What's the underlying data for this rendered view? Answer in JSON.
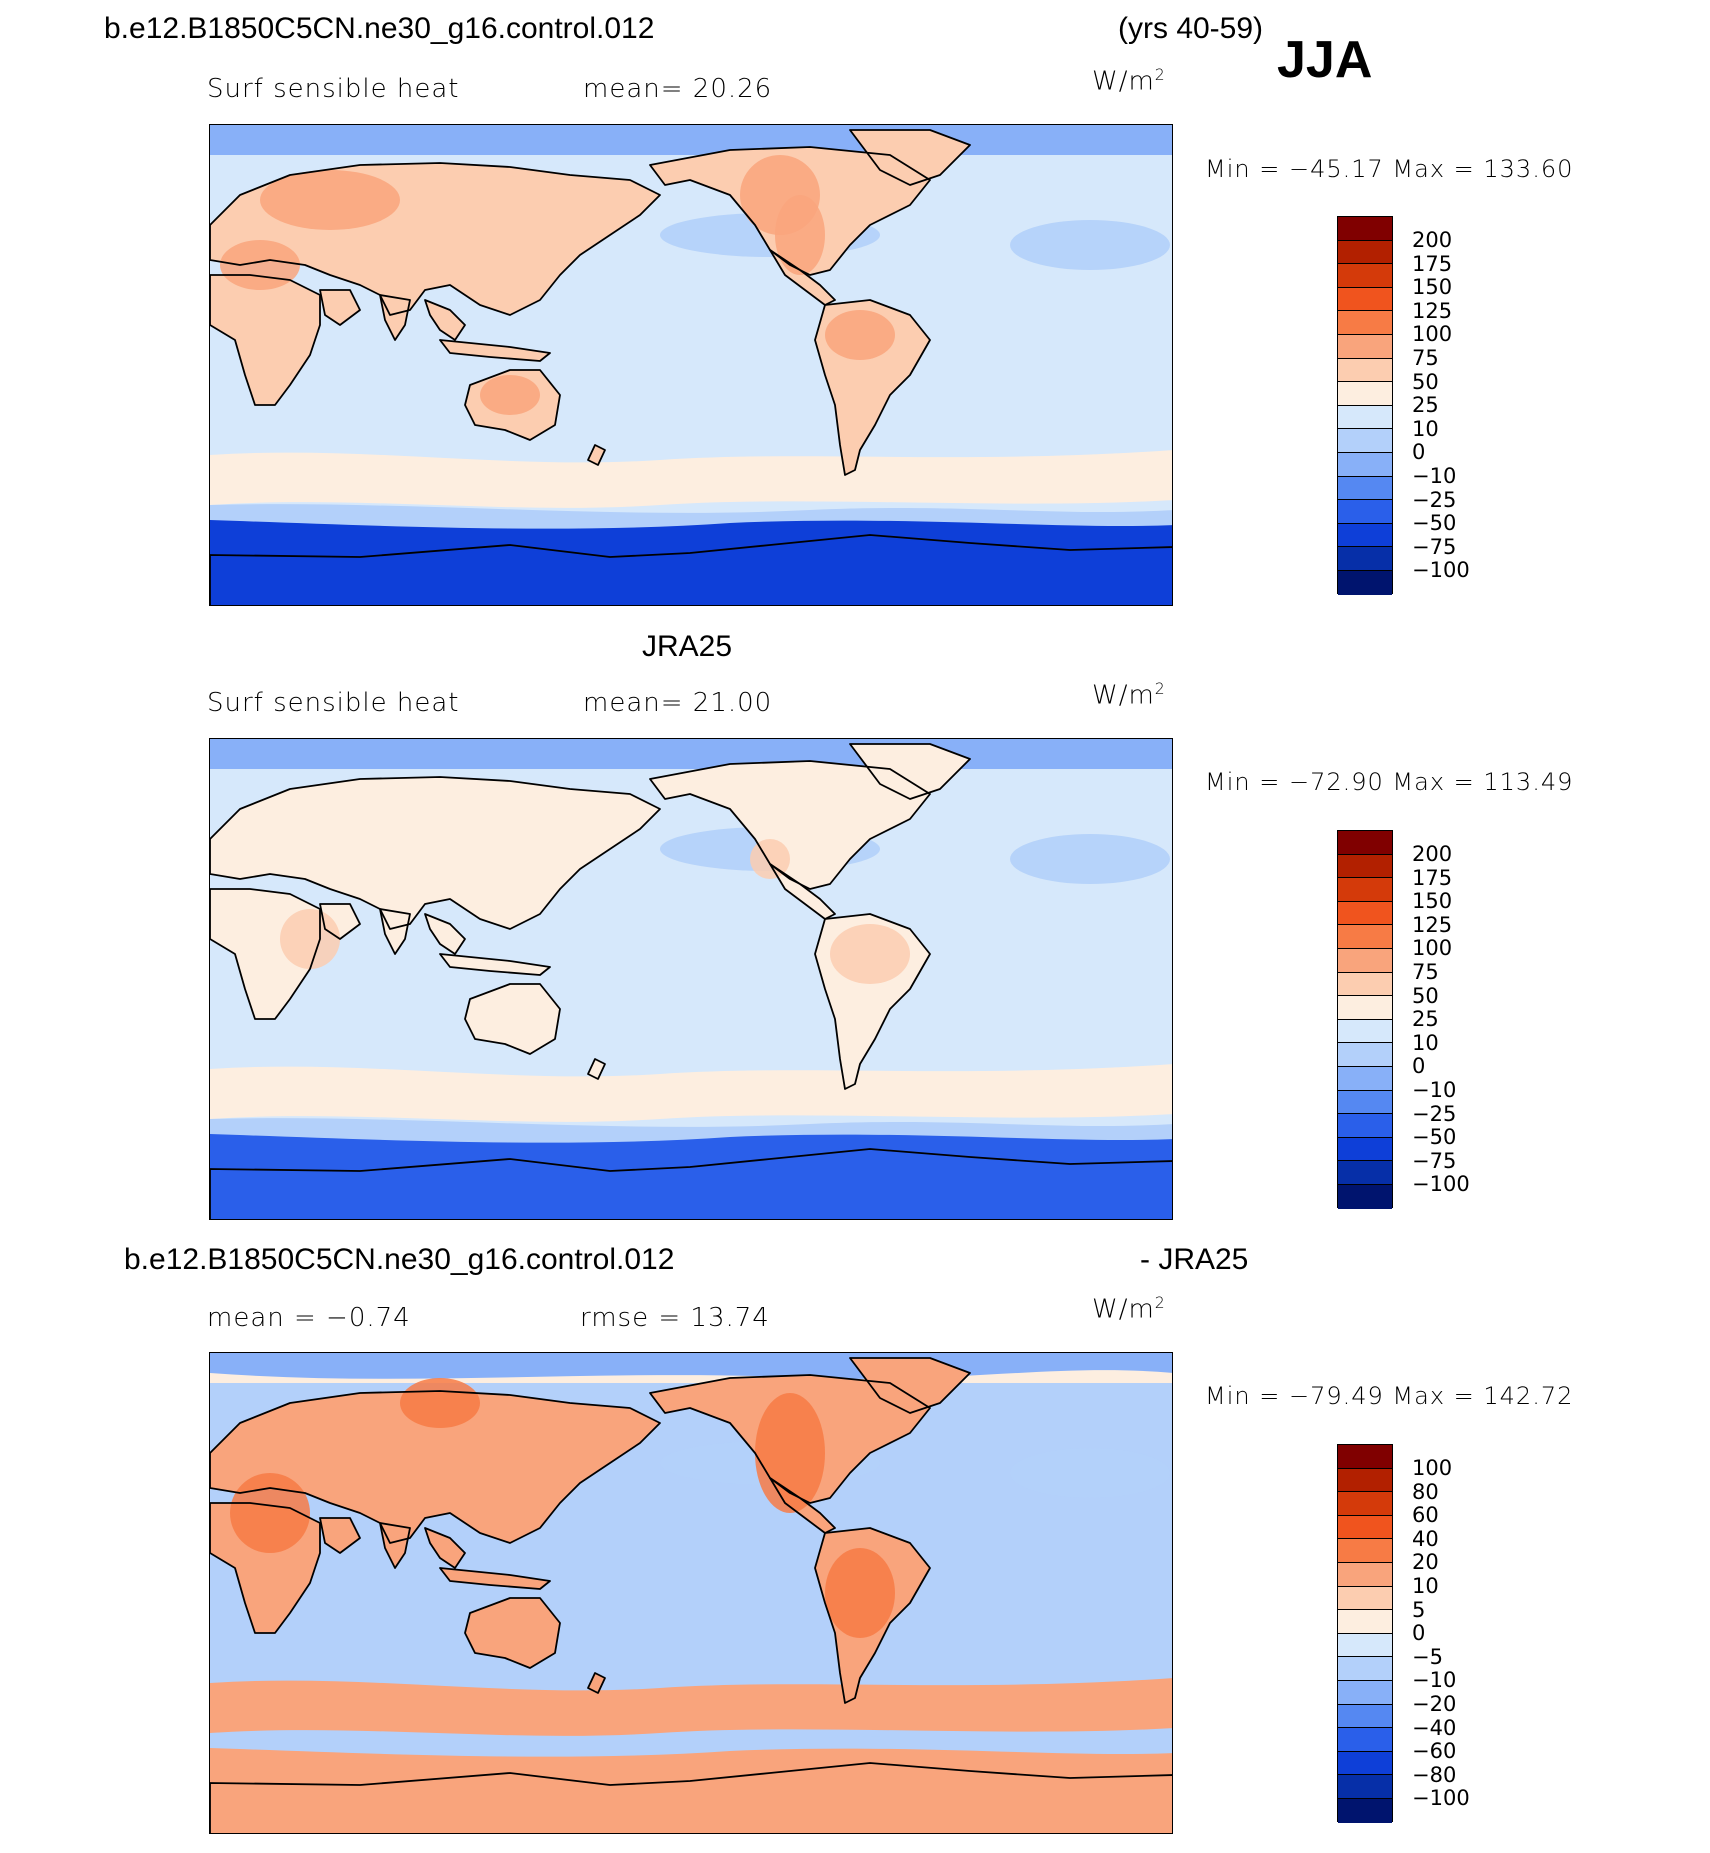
{
  "header": {
    "case_name": "b.e12.B1850C5CN.ne30_g16.control.012",
    "years": "(yrs 40-59)",
    "season": "JJA"
  },
  "panels": [
    {
      "id": "model",
      "title": "",
      "left_label": "Surf sensible heat",
      "center_label": "mean=  20.26",
      "units": "W/m",
      "units_sup": "2",
      "minmax": "Min = −45.17 Max = 133.60"
    },
    {
      "id": "obs",
      "title": "JRA25",
      "left_label": "Surf sensible heat",
      "center_label": "mean=  21.00",
      "units": "W/m",
      "units_sup": "2",
      "minmax": "Min = −72.90 Max = 113.49"
    },
    {
      "id": "diff",
      "title_left": "b.e12.B1850C5CN.ne30_g16.control.012",
      "title_right": "- JRA25",
      "left_label": "mean =  −0.74",
      "center_label": "rmse =  13.74",
      "units": "W/m",
      "units_sup": "2",
      "minmax": "Min = −79.49 Max = 142.72"
    }
  ],
  "colorbars": {
    "main_levels": [
      "200",
      "175",
      "150",
      "125",
      "100",
      "75",
      "50",
      "25",
      "10",
      "0",
      "−10",
      "−25",
      "−50",
      "−75",
      "−100"
    ],
    "diff_levels": [
      "100",
      "80",
      "60",
      "40",
      "20",
      "10",
      "5",
      "0",
      "−5",
      "−10",
      "−20",
      "−40",
      "−60",
      "−80",
      "−100"
    ],
    "colors": [
      "#800000",
      "#b22000",
      "#d43a0a",
      "#f0541e",
      "#f77b45",
      "#f9a47c",
      "#fccdb0",
      "#fdeee0",
      "#d6e8fb",
      "#b3d0fa",
      "#88b0f8",
      "#5588f2",
      "#2a5fea",
      "#0e3fd8",
      "#062fa8",
      "#00146e"
    ]
  },
  "chart_data": [
    {
      "type": "heatmap",
      "title": "b.e12.B1850C5CN.ne30_g16.control.012",
      "variable": "Surf sensible heat",
      "units": "W/m2",
      "season": "JJA",
      "years": "yrs 40-59",
      "mean": 20.26,
      "min": -45.17,
      "max": 133.6,
      "contour_levels": [
        -100,
        -75,
        -50,
        -25,
        -10,
        0,
        10,
        25,
        50,
        75,
        100,
        125,
        150,
        175,
        200
      ]
    },
    {
      "type": "heatmap",
      "title": "JRA25",
      "variable": "Surf sensible heat",
      "units": "W/m2",
      "mean": 21.0,
      "min": -72.9,
      "max": 113.49,
      "contour_levels": [
        -100,
        -75,
        -50,
        -25,
        -10,
        0,
        10,
        25,
        50,
        75,
        100,
        125,
        150,
        175,
        200
      ]
    },
    {
      "type": "heatmap",
      "title": "b.e12.B1850C5CN.ne30_g16.control.012 - JRA25",
      "units": "W/m2",
      "mean": -0.74,
      "rmse": 13.74,
      "min": -79.49,
      "max": 142.72,
      "contour_levels": [
        -100,
        -80,
        -60,
        -40,
        -20,
        -10,
        -5,
        0,
        5,
        10,
        20,
        40,
        60,
        80,
        100
      ]
    }
  ]
}
